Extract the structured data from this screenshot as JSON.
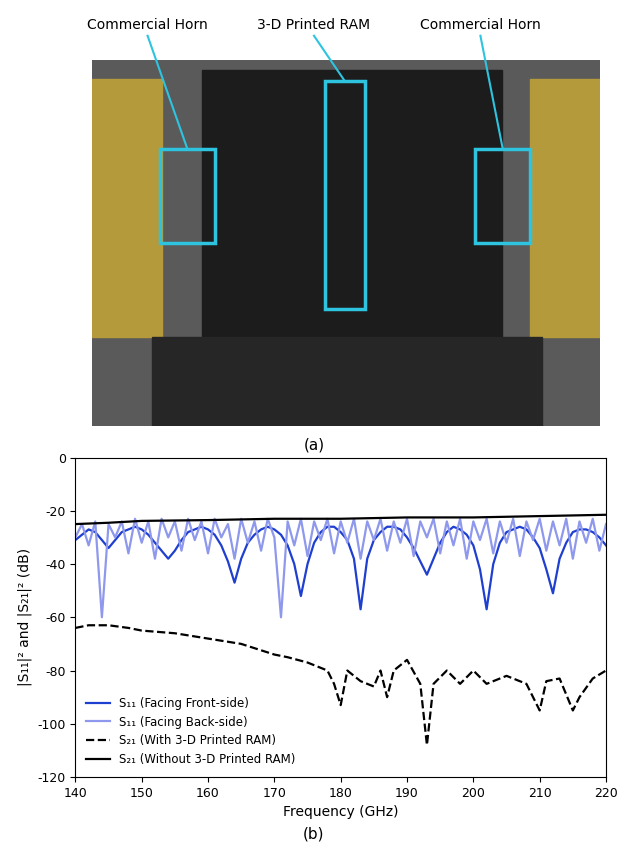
{
  "photo": {
    "labels": [
      "Commercial Horn",
      "3-D Printed RAM",
      "Commercial Horn"
    ],
    "caption": "(a)"
  },
  "chart_data": {
    "type": "line",
    "x_label": "Frequency (GHz)",
    "y_label": "|S₁₁|² and |S₂₁|² (dB)",
    "annotations": [
      "(b)"
    ],
    "xlim": [
      140,
      220
    ],
    "xticks": [
      140,
      150,
      160,
      170,
      180,
      190,
      200,
      210,
      220
    ],
    "ylim": [
      -120,
      0
    ],
    "yticks": [
      -120,
      -100,
      -80,
      -60,
      -40,
      -20,
      0
    ],
    "grid": false,
    "legend": "lower left",
    "series": [
      {
        "name": "S₁₁ (Facing Front-side)",
        "color": "#1f3fd0",
        "line_style": "solid",
        "x": [
          140,
          141,
          142,
          143,
          144,
          145,
          146,
          147,
          148,
          149,
          150,
          151,
          152,
          153,
          154,
          155,
          156,
          157,
          158,
          159,
          160,
          161,
          162,
          163,
          164,
          165,
          166,
          167,
          168,
          169,
          170,
          171,
          172,
          173,
          174,
          175,
          176,
          177,
          178,
          179,
          180,
          181,
          182,
          183,
          184,
          185,
          186,
          187,
          188,
          189,
          190,
          191,
          192,
          193,
          194,
          195,
          196,
          197,
          198,
          199,
          200,
          201,
          202,
          203,
          204,
          205,
          206,
          207,
          208,
          209,
          210,
          211,
          212,
          213,
          214,
          215,
          216,
          217,
          218,
          219,
          220
        ],
        "values": [
          -31,
          -29,
          -27,
          -28,
          -31,
          -34,
          -31,
          -28,
          -27,
          -26,
          -27,
          -29,
          -32,
          -35,
          -38,
          -35,
          -31,
          -28,
          -27,
          -26,
          -27,
          -29,
          -33,
          -39,
          -47,
          -38,
          -32,
          -29,
          -27,
          -26,
          -27,
          -29,
          -33,
          -40,
          -52,
          -40,
          -32,
          -28,
          -26,
          -26,
          -28,
          -31,
          -38,
          -57,
          -38,
          -31,
          -28,
          -26,
          -26,
          -27,
          -30,
          -34,
          -39,
          -44,
          -38,
          -32,
          -28,
          -26,
          -27,
          -29,
          -33,
          -42,
          -57,
          -40,
          -32,
          -28,
          -27,
          -26,
          -27,
          -30,
          -34,
          -42,
          -51,
          -38,
          -32,
          -28,
          -27,
          -27,
          -28,
          -30,
          -33
        ]
      },
      {
        "name": "S₁₁ (Facing Back-side)",
        "color": "#8e98ec",
        "line_style": "solid",
        "x": [
          140,
          141,
          142,
          143,
          144,
          145,
          146,
          147,
          148,
          149,
          150,
          151,
          152,
          153,
          154,
          155,
          156,
          157,
          158,
          159,
          160,
          161,
          162,
          163,
          164,
          165,
          166,
          167,
          168,
          169,
          170,
          171,
          172,
          173,
          174,
          175,
          176,
          177,
          178,
          179,
          180,
          181,
          182,
          183,
          184,
          185,
          186,
          187,
          188,
          189,
          190,
          191,
          192,
          193,
          194,
          195,
          196,
          197,
          198,
          199,
          200,
          201,
          202,
          203,
          204,
          205,
          206,
          207,
          208,
          209,
          210,
          211,
          212,
          213,
          214,
          215,
          216,
          217,
          218,
          219,
          220
        ],
        "values": [
          -30,
          -25,
          -33,
          -24,
          -60,
          -25,
          -30,
          -24,
          -36,
          -23,
          -32,
          -24,
          -38,
          -23,
          -30,
          -24,
          -35,
          -23,
          -31,
          -24,
          -36,
          -23,
          -30,
          -25,
          -38,
          -23,
          -32,
          -24,
          -35,
          -23,
          -30,
          -60,
          -24,
          -33,
          -23,
          -37,
          -24,
          -31,
          -23,
          -36,
          -24,
          -32,
          -23,
          -38,
          -24,
          -31,
          -23,
          -35,
          -24,
          -32,
          -23,
          -37,
          -24,
          -30,
          -23,
          -36,
          -24,
          -33,
          -23,
          -38,
          -24,
          -31,
          -23,
          -36,
          -24,
          -32,
          -23,
          -37,
          -24,
          -31,
          -23,
          -35,
          -24,
          -33,
          -23,
          -38,
          -24,
          -32,
          -23,
          -35,
          -25
        ]
      },
      {
        "name": "S₂₁ (With 3-D Printed RAM)",
        "color": "#000000",
        "line_style": "dashed",
        "x": [
          140,
          142,
          145,
          148,
          150,
          155,
          160,
          165,
          170,
          172,
          175,
          178,
          179,
          180,
          181,
          183,
          185,
          186,
          187,
          188,
          190,
          192,
          193,
          194,
          196,
          198,
          200,
          202,
          205,
          208,
          210,
          211,
          213,
          215,
          216,
          218,
          220
        ],
        "values": [
          -64,
          -63,
          -63,
          -64,
          -65,
          -66,
          -68,
          -70,
          -74,
          -75,
          -77,
          -80,
          -85,
          -93,
          -80,
          -84,
          -86,
          -80,
          -90,
          -80,
          -76,
          -85,
          -108,
          -85,
          -80,
          -85,
          -80,
          -85,
          -82,
          -85,
          -95,
          -84,
          -83,
          -95,
          -90,
          -83,
          -80
        ]
      },
      {
        "name": "S₂₁ (Without 3-D Printed RAM)",
        "color": "#000000",
        "line_style": "solid",
        "x": [
          140,
          145,
          150,
          160,
          170,
          180,
          190,
          200,
          210,
          220
        ],
        "values": [
          -25,
          -24.5,
          -23.8,
          -23.5,
          -23,
          -23,
          -22.5,
          -22.5,
          -22,
          -21.5
        ]
      }
    ]
  }
}
